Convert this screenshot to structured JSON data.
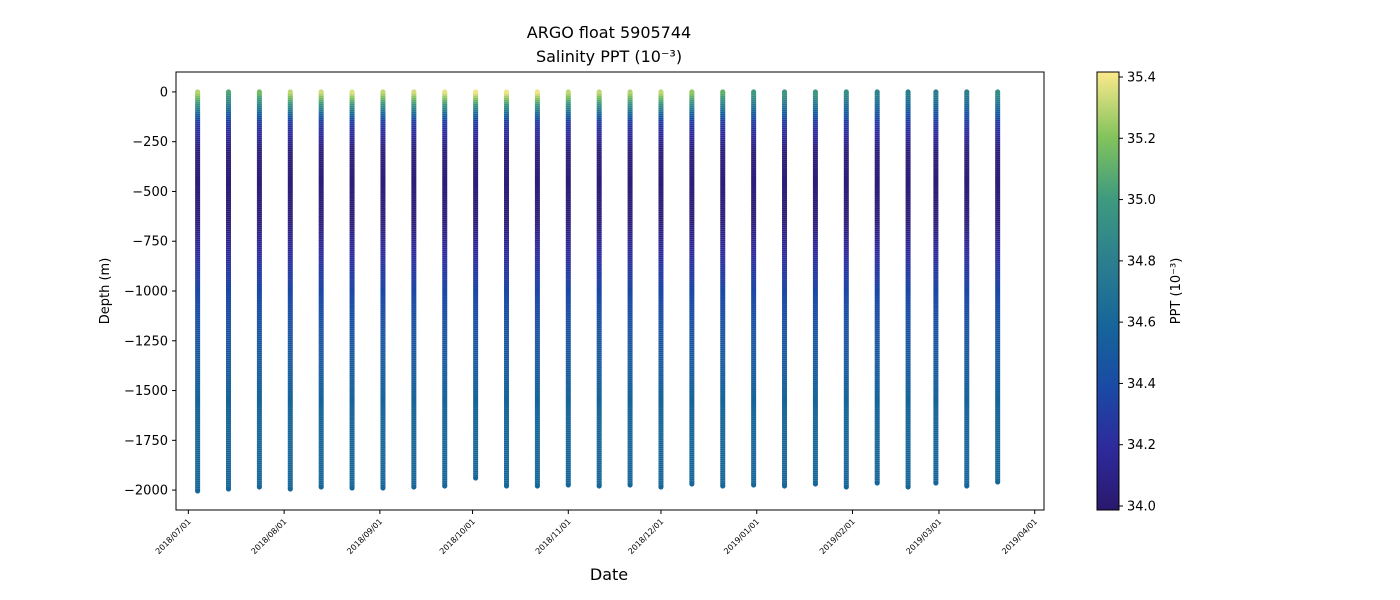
{
  "chart_data": {
    "type": "scatter",
    "title_line1": "ARGO float 5905744",
    "title_line2": "Salinity PPT (10⁻³)",
    "xlabel": "Date",
    "ylabel": "Depth (m)",
    "colorbar_label": "PPT (10⁻³)",
    "colormap": "haline",
    "color_range": [
      34.0,
      35.4
    ],
    "colorbar_ticks": [
      "34.0",
      "34.2",
      "34.4",
      "34.6",
      "34.8",
      "35.0",
      "35.2",
      "35.4"
    ],
    "ylim": [
      -2100,
      100
    ],
    "yticks": [
      {
        "value": 0,
        "label": "0"
      },
      {
        "value": -250,
        "label": "−250"
      },
      {
        "value": -500,
        "label": "−500"
      },
      {
        "value": -750,
        "label": "−750"
      },
      {
        "value": -1000,
        "label": "−1000"
      },
      {
        "value": -1250,
        "label": "−1250"
      },
      {
        "value": -1500,
        "label": "−1500"
      },
      {
        "value": -1750,
        "label": "−1750"
      },
      {
        "value": -2000,
        "label": "−2000"
      }
    ],
    "xlim": [
      "2018-06-27",
      "2019-04-04"
    ],
    "xticks": [
      {
        "date": "2018-07-01",
        "label": "2018/07/01"
      },
      {
        "date": "2018-08-01",
        "label": "2018/08/01"
      },
      {
        "date": "2018-09-01",
        "label": "2018/09/01"
      },
      {
        "date": "2018-10-01",
        "label": "2018/10/01"
      },
      {
        "date": "2018-11-01",
        "label": "2018/11/01"
      },
      {
        "date": "2018-12-01",
        "label": "2018/12/01"
      },
      {
        "date": "2019-01-01",
        "label": "2019/01/01"
      },
      {
        "date": "2019-02-01",
        "label": "2019/02/01"
      },
      {
        "date": "2019-03-01",
        "label": "2019/03/01"
      },
      {
        "date": "2019-04-01",
        "label": "2019/04/01"
      }
    ],
    "profiles": [
      {
        "date": "2018-07-04",
        "max_depth": -2005,
        "surface_sal": 35.28
      },
      {
        "date": "2018-07-14",
        "max_depth": -1995,
        "surface_sal": 35.05
      },
      {
        "date": "2018-07-24",
        "max_depth": -1985,
        "surface_sal": 35.15
      },
      {
        "date": "2018-08-03",
        "max_depth": -1995,
        "surface_sal": 35.3
      },
      {
        "date": "2018-08-13",
        "max_depth": -1985,
        "surface_sal": 35.32
      },
      {
        "date": "2018-08-23",
        "max_depth": -1990,
        "surface_sal": 35.35
      },
      {
        "date": "2018-09-02",
        "max_depth": -1990,
        "surface_sal": 35.3
      },
      {
        "date": "2018-09-12",
        "max_depth": -1985,
        "surface_sal": 35.33
      },
      {
        "date": "2018-09-22",
        "max_depth": -1980,
        "surface_sal": 35.36
      },
      {
        "date": "2018-10-02",
        "max_depth": -1940,
        "surface_sal": 35.38
      },
      {
        "date": "2018-10-12",
        "max_depth": -1980,
        "surface_sal": 35.38
      },
      {
        "date": "2018-10-22",
        "max_depth": -1980,
        "surface_sal": 35.38
      },
      {
        "date": "2018-11-01",
        "max_depth": -1975,
        "surface_sal": 35.3
      },
      {
        "date": "2018-11-11",
        "max_depth": -1980,
        "surface_sal": 35.3
      },
      {
        "date": "2018-11-21",
        "max_depth": -1975,
        "surface_sal": 35.28
      },
      {
        "date": "2018-12-01",
        "max_depth": -1985,
        "surface_sal": 35.3
      },
      {
        "date": "2018-12-11",
        "max_depth": -1970,
        "surface_sal": 35.22
      },
      {
        "date": "2018-12-21",
        "max_depth": -1980,
        "surface_sal": 35.1
      },
      {
        "date": "2018-12-31",
        "max_depth": -1975,
        "surface_sal": 35.0
      },
      {
        "date": "2019-01-10",
        "max_depth": -1980,
        "surface_sal": 34.98
      },
      {
        "date": "2019-01-20",
        "max_depth": -1970,
        "surface_sal": 34.98
      },
      {
        "date": "2019-01-30",
        "max_depth": -1985,
        "surface_sal": 34.9
      },
      {
        "date": "2019-02-09",
        "max_depth": -1965,
        "surface_sal": 34.82
      },
      {
        "date": "2019-02-19",
        "max_depth": -1985,
        "surface_sal": 34.78
      },
      {
        "date": "2019-02-28",
        "max_depth": -1965,
        "surface_sal": 34.8
      },
      {
        "date": "2019-03-10",
        "max_depth": -1980,
        "surface_sal": 34.8
      },
      {
        "date": "2019-03-20",
        "max_depth": -1960,
        "surface_sal": 34.9
      }
    ]
  }
}
